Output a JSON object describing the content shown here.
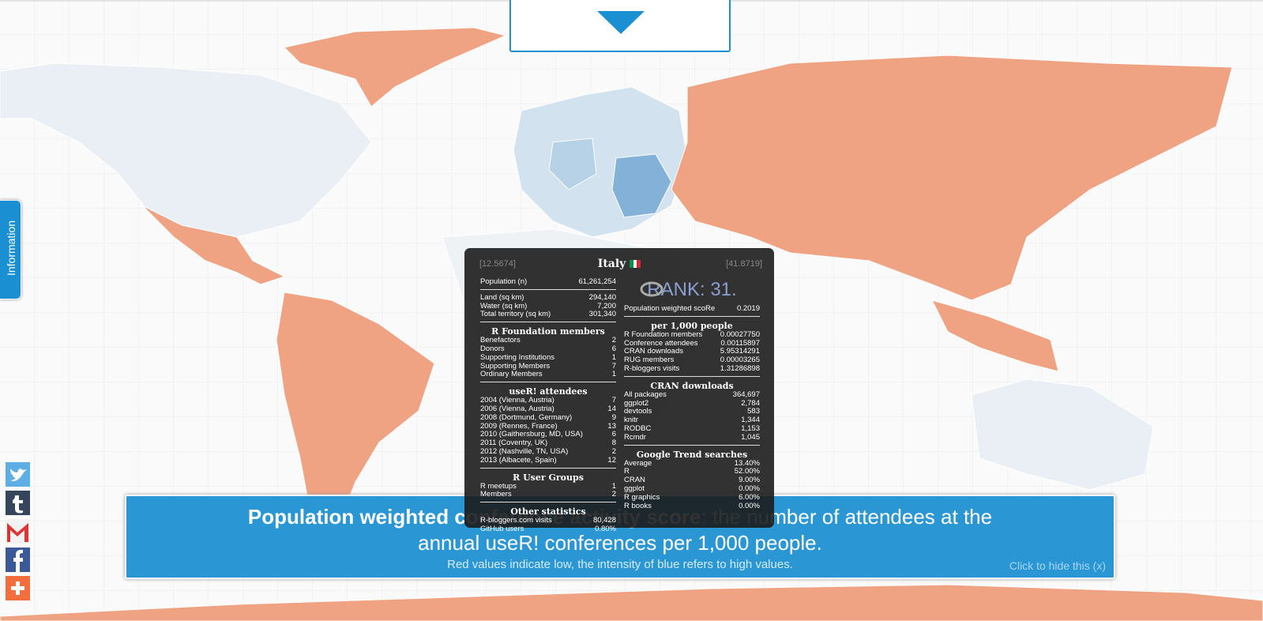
{
  "sidebar_tab": "Information",
  "tooltip": {
    "longitude": "[12.5674]",
    "country": "Italy",
    "latitude": "[41.8719]",
    "rank": "RANK: 31.",
    "left": [
      {
        "rows": [
          [
            "Population (n)",
            "61,261,254"
          ]
        ]
      },
      {
        "rows": [
          [
            "Land (sq km)",
            "294,140"
          ],
          [
            "Water (sq km)",
            "7,200"
          ],
          [
            "Total territory (sq km)",
            "301,340"
          ]
        ]
      },
      {
        "heading": "R Foundation members",
        "rows": [
          [
            "Benefactors",
            "2"
          ],
          [
            "Donors",
            "6"
          ],
          [
            "Supporting Institutions",
            "1"
          ],
          [
            "Supporting Members",
            "7"
          ],
          [
            "Ordinary Members",
            "1"
          ]
        ]
      },
      {
        "heading": "useR! attendees",
        "rows": [
          [
            "2004 (Vienna, Austria)",
            "7"
          ],
          [
            "2006 (Vienna, Austria)",
            "14"
          ],
          [
            "2008 (Dortmund, Germany)",
            "9"
          ],
          [
            "2009 (Rennes, France)",
            "13"
          ],
          [
            "2010 (Gaithersburg, MD, USA)",
            "6"
          ],
          [
            "2011 (Coventry, UK)",
            "8"
          ],
          [
            "2012 (Nashville, TN, USA)",
            "2"
          ],
          [
            "2013 (Albacete, Spain)",
            "12"
          ]
        ]
      },
      {
        "heading": "R User Groups",
        "rows": [
          [
            "R meetups",
            "1"
          ],
          [
            "Members",
            "2"
          ]
        ]
      },
      {
        "heading": "Other statistics",
        "rows": [
          [
            "R-bloggers.com visits",
            "80,428"
          ],
          [
            "GitHub users",
            "0.80%"
          ]
        ]
      }
    ],
    "right": [
      {
        "rows": [
          [
            "Population weighted scoRe",
            "0.2019"
          ]
        ]
      },
      {
        "heading": "per 1,000 people",
        "rows": [
          [
            "R Foundation members",
            "0.00027750"
          ],
          [
            "Conference attendees",
            "0.00115897"
          ],
          [
            "CRAN downloads",
            "5.95314291"
          ],
          [
            "RUG members",
            "0.00003265"
          ],
          [
            "R-bloggers visits",
            "1.31286898"
          ]
        ]
      },
      {
        "heading": "CRAN downloads",
        "rows": [
          [
            "All packages",
            "364,697"
          ],
          [
            "ggplot2",
            "2,784"
          ],
          [
            "devtools",
            "583"
          ],
          [
            "knitr",
            "1,344"
          ],
          [
            "RODBC",
            "1,153"
          ],
          [
            "Rcmdr",
            "1,045"
          ]
        ]
      },
      {
        "heading": "Google Trend searches",
        "rows": [
          [
            "Average",
            "13.40%"
          ],
          [
            "R",
            "52.00%"
          ],
          [
            "CRAN",
            "9.00%"
          ],
          [
            "ggplot",
            "0.00%"
          ],
          [
            "R graphics",
            "6.00%"
          ],
          [
            "R books",
            "0.00%"
          ]
        ]
      }
    ]
  },
  "banner": {
    "title_bold": "Population weighted conference activity score",
    "title_rest": ": the number of attendees at the annual useR! conferences per 1,000 people.",
    "subtitle": "Red values indicate low, the intensity of blue refers to high values.",
    "hide": "Click to hide this (x)"
  }
}
